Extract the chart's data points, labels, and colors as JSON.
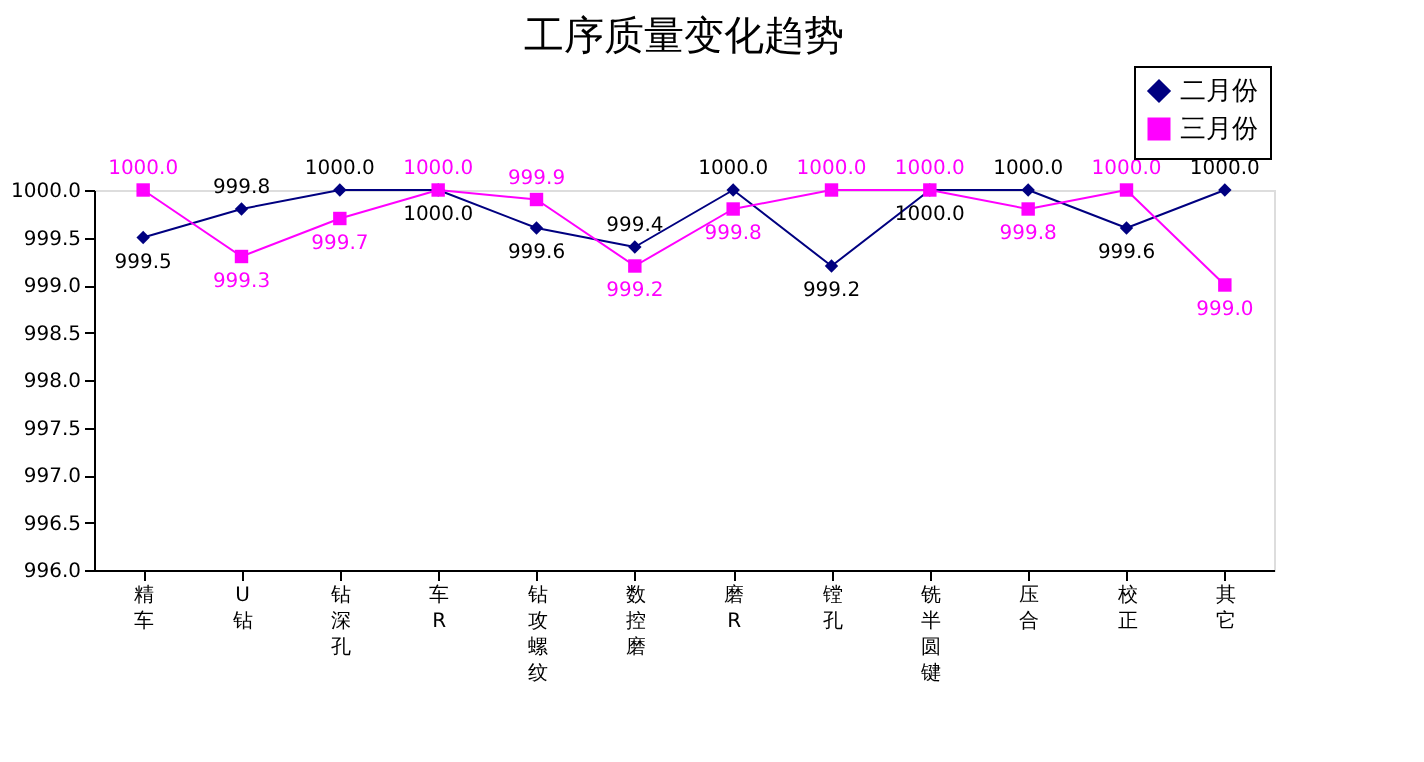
{
  "chart_data": {
    "type": "line",
    "title": "工序质量变化趋势",
    "categories": [
      "精车",
      "U钻",
      "钻深孔",
      "车R",
      "钻攻螺纹",
      "数控磨",
      "磨R",
      "镗孔",
      "铣半圆键",
      "压合",
      "校正",
      "其它"
    ],
    "series": [
      {
        "name": "二月份",
        "color": "#000080",
        "marker": "diamond",
        "values": [
          999.5,
          999.8,
          1000.0,
          1000.0,
          999.6,
          999.4,
          1000.0,
          999.2,
          1000.0,
          1000.0,
          999.6,
          1000.0
        ],
        "value_labels": [
          "999.5",
          "999.8",
          "1000.0",
          "1000.0",
          "999.6",
          "999.4",
          "1000.0",
          "999.2",
          "1000.0",
          "1000.0",
          "999.6",
          "1000.0"
        ]
      },
      {
        "name": "三月份",
        "color": "#ff00ff",
        "marker": "square",
        "values": [
          1000.0,
          999.3,
          999.7,
          1000.0,
          999.9,
          999.2,
          999.8,
          1000.0,
          1000.0,
          999.8,
          1000.0,
          999.0
        ],
        "value_labels": [
          "1000.0",
          "999.3",
          "999.7",
          "1000.0",
          "999.9",
          "999.2",
          "999.8",
          "1000.0",
          "1000.0",
          "999.8",
          "1000.0",
          "999.0"
        ]
      }
    ],
    "ylim": [
      996,
      1000
    ],
    "yticks": [
      {
        "value": 996,
        "label": "996.0"
      },
      {
        "value": 996.5,
        "label": "996.5"
      },
      {
        "value": 997,
        "label": "997.0"
      },
      {
        "value": 997.5,
        "label": "997.5"
      },
      {
        "value": 998,
        "label": "998.0"
      },
      {
        "value": 998.5,
        "label": "998.5"
      },
      {
        "value": 999,
        "label": "999.0"
      },
      {
        "value": 999.5,
        "label": "999.5"
      },
      {
        "value": 1000,
        "label": "1000.0"
      }
    ],
    "grid": false,
    "legend": "top right"
  }
}
